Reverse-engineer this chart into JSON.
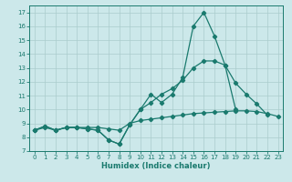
{
  "title": "",
  "xlabel": "Humidex (Indice chaleur)",
  "bg_color": "#cce8ea",
  "grid_color": "#aacccc",
  "line_color": "#1a7a6e",
  "xlim": [
    -0.5,
    23.5
  ],
  "ylim": [
    7,
    17.5
  ],
  "yticks": [
    7,
    8,
    9,
    10,
    11,
    12,
    13,
    14,
    15,
    16,
    17
  ],
  "xticks": [
    0,
    1,
    2,
    3,
    4,
    5,
    6,
    7,
    8,
    9,
    10,
    11,
    12,
    13,
    14,
    15,
    16,
    17,
    18,
    19,
    20,
    21,
    22,
    23
  ],
  "line1_x": [
    0,
    1,
    2,
    3,
    4,
    5,
    6,
    7,
    8,
    9,
    10,
    11,
    12,
    13,
    14,
    15,
    16,
    17,
    18,
    19,
    20,
    21,
    22
  ],
  "line1_y": [
    8.5,
    8.8,
    8.5,
    8.7,
    8.7,
    8.6,
    8.5,
    7.8,
    7.5,
    8.9,
    10.0,
    11.1,
    10.5,
    11.1,
    12.3,
    16.0,
    17.0,
    15.3,
    13.2,
    11.9,
    11.1,
    10.4,
    9.6
  ],
  "line2_x": [
    0,
    1,
    2,
    3,
    4,
    5,
    6,
    7,
    8,
    9,
    10,
    11,
    12,
    13,
    14,
    15,
    16,
    17,
    18,
    19
  ],
  "line2_y": [
    8.5,
    8.8,
    8.5,
    8.7,
    8.7,
    8.6,
    8.5,
    7.8,
    7.5,
    8.9,
    10.0,
    10.5,
    11.1,
    11.5,
    12.1,
    13.0,
    13.5,
    13.5,
    13.2,
    10.0
  ],
  "line3_x": [
    0,
    1,
    2,
    3,
    4,
    5,
    6,
    7,
    8,
    9,
    10,
    11,
    12,
    13,
    14,
    15,
    16,
    17,
    18,
    19,
    20,
    21,
    22,
    23
  ],
  "line3_y": [
    8.5,
    8.7,
    8.5,
    8.7,
    8.7,
    8.7,
    8.7,
    8.6,
    8.5,
    9.0,
    9.2,
    9.3,
    9.4,
    9.5,
    9.6,
    9.7,
    9.75,
    9.8,
    9.85,
    9.9,
    9.9,
    9.85,
    9.7,
    9.5
  ]
}
